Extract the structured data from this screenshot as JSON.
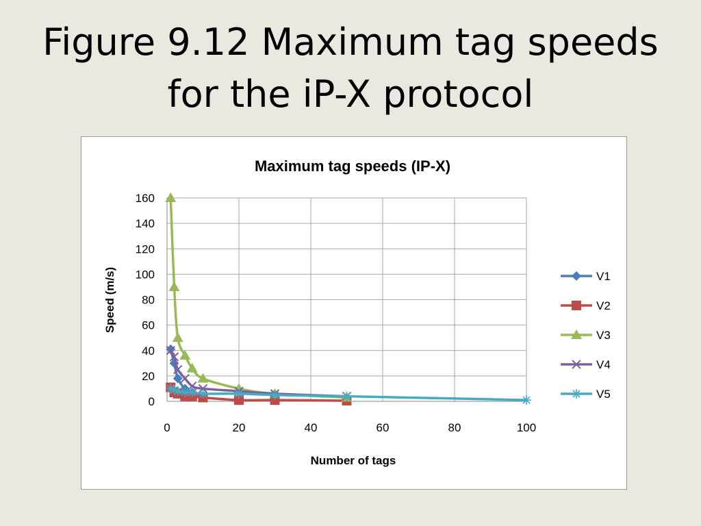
{
  "slide": {
    "title_line1": "Figure 9.12 Maximum tag speeds",
    "title_line2": "for the iP-X protocol"
  },
  "chart_data": {
    "type": "line",
    "title": "Maximum tag speeds (IP-X)",
    "xlabel": "Number of tags",
    "ylabel": "Speed (m/s)",
    "xlim": [
      0,
      100
    ],
    "ylim": [
      0,
      160
    ],
    "x_ticks": [
      0,
      20,
      40,
      60,
      80,
      100
    ],
    "y_ticks": [
      0,
      20,
      40,
      60,
      80,
      100,
      120,
      140,
      160
    ],
    "grid": true,
    "legend_position": "right",
    "series": [
      {
        "name": "V1",
        "color": "#4a7ebb",
        "marker": "diamond",
        "points": [
          [
            1,
            41
          ],
          [
            2,
            30
          ],
          [
            3,
            18
          ],
          [
            5,
            10
          ],
          [
            7,
            7
          ],
          [
            10,
            4
          ]
        ]
      },
      {
        "name": "V2",
        "color": "#be4b48",
        "marker": "square",
        "points": [
          [
            1,
            11
          ],
          [
            2,
            7
          ],
          [
            3,
            6
          ],
          [
            5,
            4
          ],
          [
            7,
            4
          ],
          [
            10,
            3
          ],
          [
            20,
            1
          ],
          [
            30,
            1
          ],
          [
            50,
            0.5
          ]
        ]
      },
      {
        "name": "V3",
        "color": "#98b954",
        "marker": "triangle",
        "points": [
          [
            1,
            160
          ],
          [
            2,
            90
          ],
          [
            3,
            50
          ],
          [
            5,
            36
          ],
          [
            7,
            26
          ],
          [
            10,
            18
          ],
          [
            20,
            10
          ],
          [
            30,
            6
          ],
          [
            50,
            3
          ]
        ]
      },
      {
        "name": "V4",
        "color": "#7d60a0",
        "marker": "x",
        "points": [
          [
            1,
            40
          ],
          [
            2,
            35
          ],
          [
            3,
            25
          ],
          [
            5,
            18
          ],
          [
            7,
            12
          ],
          [
            10,
            10
          ],
          [
            20,
            8
          ],
          [
            30,
            6
          ],
          [
            50,
            4
          ]
        ]
      },
      {
        "name": "V5",
        "color": "#46aac5",
        "marker": "star",
        "points": [
          [
            1,
            10
          ],
          [
            2,
            9
          ],
          [
            3,
            8
          ],
          [
            5,
            7
          ],
          [
            7,
            7
          ],
          [
            10,
            6
          ],
          [
            20,
            6
          ],
          [
            30,
            5
          ],
          [
            50,
            4
          ],
          [
            100,
            1
          ]
        ]
      }
    ]
  }
}
